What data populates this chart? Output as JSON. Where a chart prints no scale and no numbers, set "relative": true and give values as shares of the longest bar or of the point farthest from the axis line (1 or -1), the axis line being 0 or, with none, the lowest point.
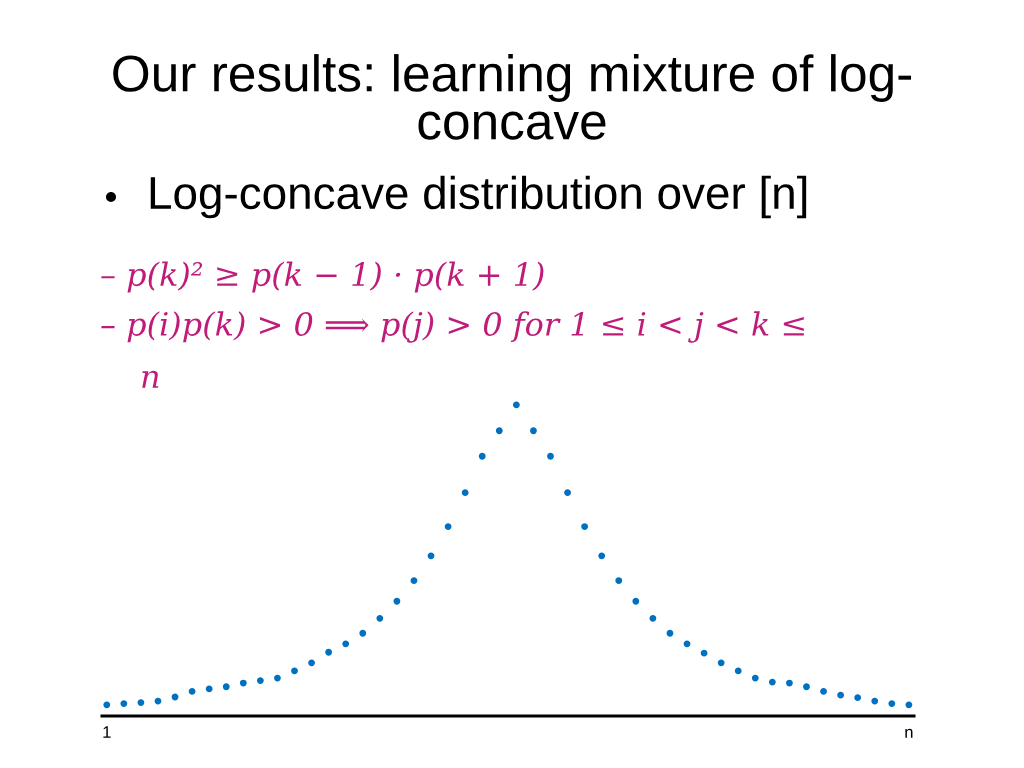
{
  "chart_data": {
    "type": "scatter",
    "relative": true,
    "marker": "circle",
    "color": "#0070c0",
    "title": "Our results: learning mixture of log-\nconcave",
    "subtitle": "Log-concave distribution over [n]",
    "annotations": [
      "– p(k)² ≥ p(k − 1) · p(k + 1)",
      "– p(i)p(k) > 0 ⟹ p(j) > 0 for 1 ≤ i < j < k ≤\nn"
    ],
    "categories": [
      "1",
      null,
      null,
      null,
      null,
      null,
      null,
      null,
      null,
      null,
      null,
      null,
      null,
      null,
      null,
      null,
      null,
      null,
      null,
      null,
      null,
      null,
      null,
      null,
      null,
      null,
      null,
      null,
      null,
      null,
      null,
      null,
      null,
      null,
      null,
      null,
      null,
      null,
      null,
      null,
      null,
      null,
      null,
      null,
      null,
      null,
      null,
      "n"
    ],
    "values": [
      0.036,
      0.04,
      0.043,
      0.048,
      0.061,
      0.079,
      0.087,
      0.094,
      0.106,
      0.114,
      0.122,
      0.145,
      0.171,
      0.205,
      0.232,
      0.266,
      0.314,
      0.369,
      0.435,
      0.515,
      0.609,
      0.718,
      0.835,
      0.917,
      1.0,
      0.917,
      0.835,
      0.718,
      0.609,
      0.515,
      0.435,
      0.369,
      0.314,
      0.266,
      0.232,
      0.202,
      0.171,
      0.145,
      0.122,
      0.109,
      0.106,
      0.094,
      0.079,
      0.067,
      0.059,
      0.048,
      0.04,
      0.036
    ]
  }
}
